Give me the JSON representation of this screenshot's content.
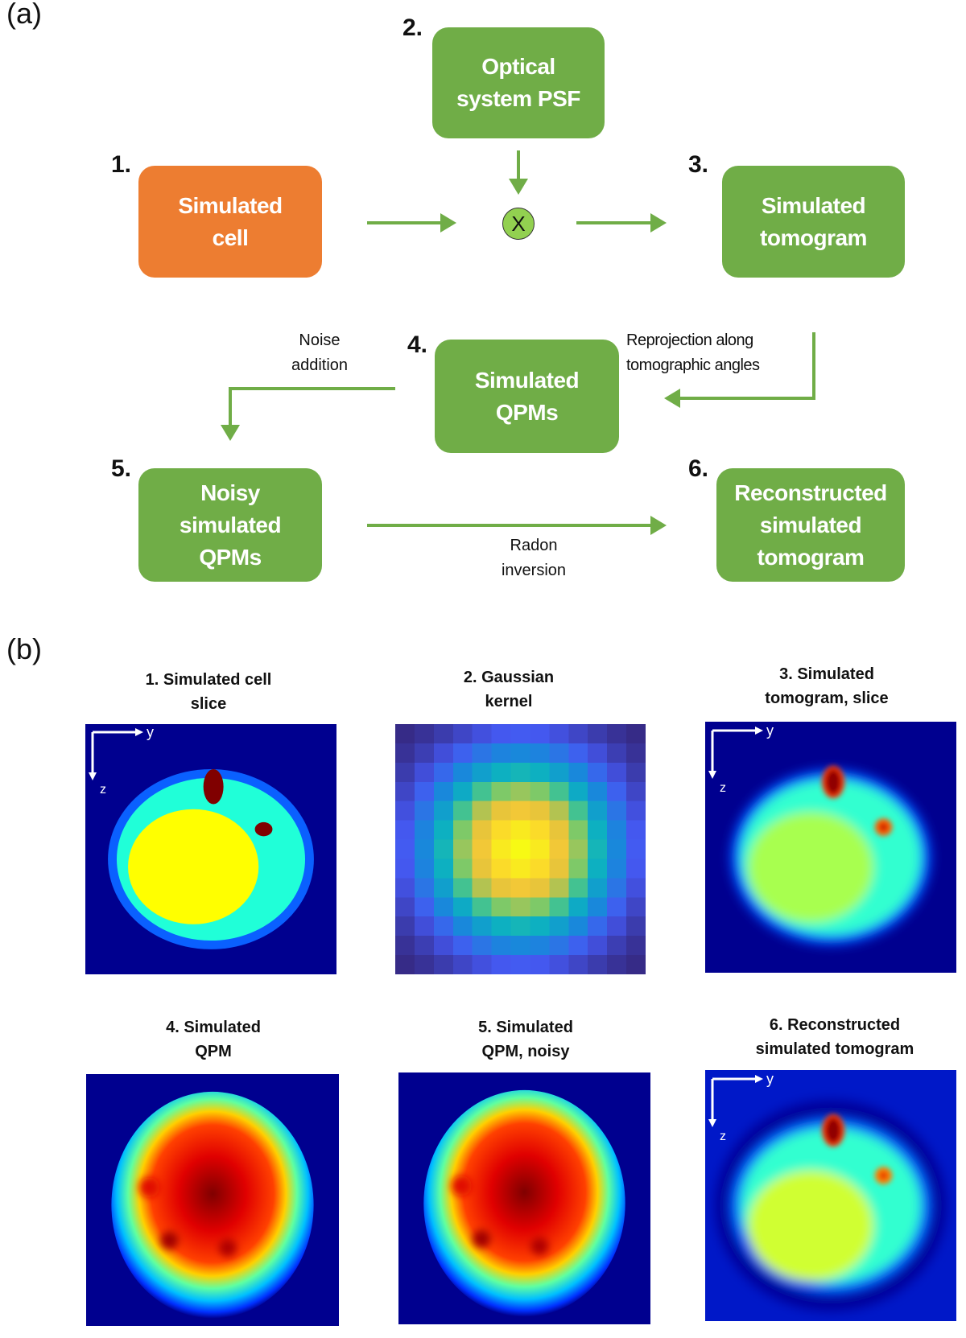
{
  "panel_a": {
    "label": "(a)",
    "boxes": [
      {
        "num": "1.",
        "text": "Simulated\ncell"
      },
      {
        "num": "2.",
        "text": "Optical\nsystem PSF"
      },
      {
        "num": "3.",
        "text": "Simulated\ntomogram"
      },
      {
        "num": "4.",
        "text": "Simulated\nQPMs"
      },
      {
        "num": "5.",
        "text": "Noisy\nsimulated\nQPMs"
      },
      {
        "num": "6.",
        "text": "Reconstructed\nsimulated\ntomogram"
      }
    ],
    "multiply_symbol": "X",
    "edge_labels": {
      "reprojection": "Reprojection along\ntomographic angles",
      "noise": "Noise\naddition",
      "radon": "Radon\ninversion"
    },
    "colors": {
      "green": "#70ad47",
      "orange": "#ed7d31",
      "multiply_fill": "#92d050"
    }
  },
  "panel_b": {
    "label": "(b)",
    "panels": [
      {
        "title": "1. Simulated cell\nslice"
      },
      {
        "title": "2. Gaussian\nkernel"
      },
      {
        "title": "3. Simulated\ntomogram, slice"
      },
      {
        "title": "4. Simulated\nQPM"
      },
      {
        "title": "5. Simulated\nQPM, noisy"
      },
      {
        "title": "6. Reconstructed\nsimulated tomogram"
      }
    ],
    "axis_labels": {
      "horizontal": "y",
      "vertical": "z"
    },
    "colormap": "jet"
  }
}
